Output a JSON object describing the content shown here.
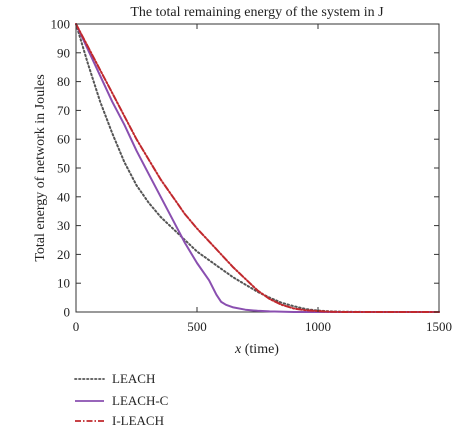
{
  "chart_data": {
    "type": "line",
    "title": "The total remaining energy of the system in J",
    "xlabel_var": "x",
    "xlabel_rest": " (time)",
    "ylabel": "Total energy of network in Joules",
    "xlim": [
      0,
      1500
    ],
    "ylim": [
      0,
      100
    ],
    "xticks": [
      0,
      500,
      1000,
      1500
    ],
    "yticks": [
      0,
      10,
      20,
      30,
      40,
      50,
      60,
      70,
      80,
      90,
      100
    ],
    "grid": false,
    "legend_position": "bottom-left, below plot",
    "series": [
      {
        "name": "LEACH",
        "color": "#555555",
        "style": "dotted",
        "x": [
          0,
          50,
          100,
          150,
          200,
          250,
          300,
          350,
          400,
          450,
          500,
          550,
          600,
          650,
          700,
          750,
          800,
          850,
          900,
          950,
          1000,
          1050,
          1100,
          1200,
          1300,
          1400,
          1500
        ],
        "y": [
          100,
          86,
          73,
          62,
          52,
          44,
          38,
          33,
          29,
          25,
          21,
          18,
          15,
          12,
          9.5,
          7,
          5,
          3.2,
          2,
          1,
          0.5,
          0.2,
          0.1,
          0,
          0,
          0,
          0
        ]
      },
      {
        "name": "LEACH-C",
        "color": "#8a4fb0",
        "style": "solid",
        "x": [
          0,
          50,
          100,
          150,
          200,
          250,
          300,
          350,
          400,
          450,
          500,
          550,
          580,
          600,
          620,
          650,
          700,
          750,
          800,
          900,
          1000,
          1100,
          1200,
          1300,
          1400,
          1500
        ],
        "y": [
          100,
          91,
          82,
          73,
          65,
          56,
          48,
          40,
          32,
          24,
          17,
          11,
          6,
          3.5,
          2.5,
          1.6,
          0.8,
          0.4,
          0.2,
          0,
          0,
          0,
          0,
          0,
          0,
          0
        ]
      },
      {
        "name": "I-LEACH",
        "color": "#c0282d",
        "style": "dash-dot",
        "x": [
          0,
          50,
          100,
          150,
          200,
          250,
          300,
          350,
          400,
          450,
          500,
          550,
          600,
          650,
          700,
          750,
          800,
          850,
          900,
          950,
          1000,
          1050,
          1100,
          1200,
          1300,
          1400,
          1500
        ],
        "y": [
          100,
          92,
          84,
          76,
          68,
          60,
          53,
          46,
          40,
          34,
          29,
          24.5,
          20,
          15.5,
          11.5,
          7.5,
          4.5,
          2.5,
          1.2,
          0.6,
          0.3,
          0.1,
          0,
          0,
          0,
          0,
          0
        ]
      }
    ]
  }
}
